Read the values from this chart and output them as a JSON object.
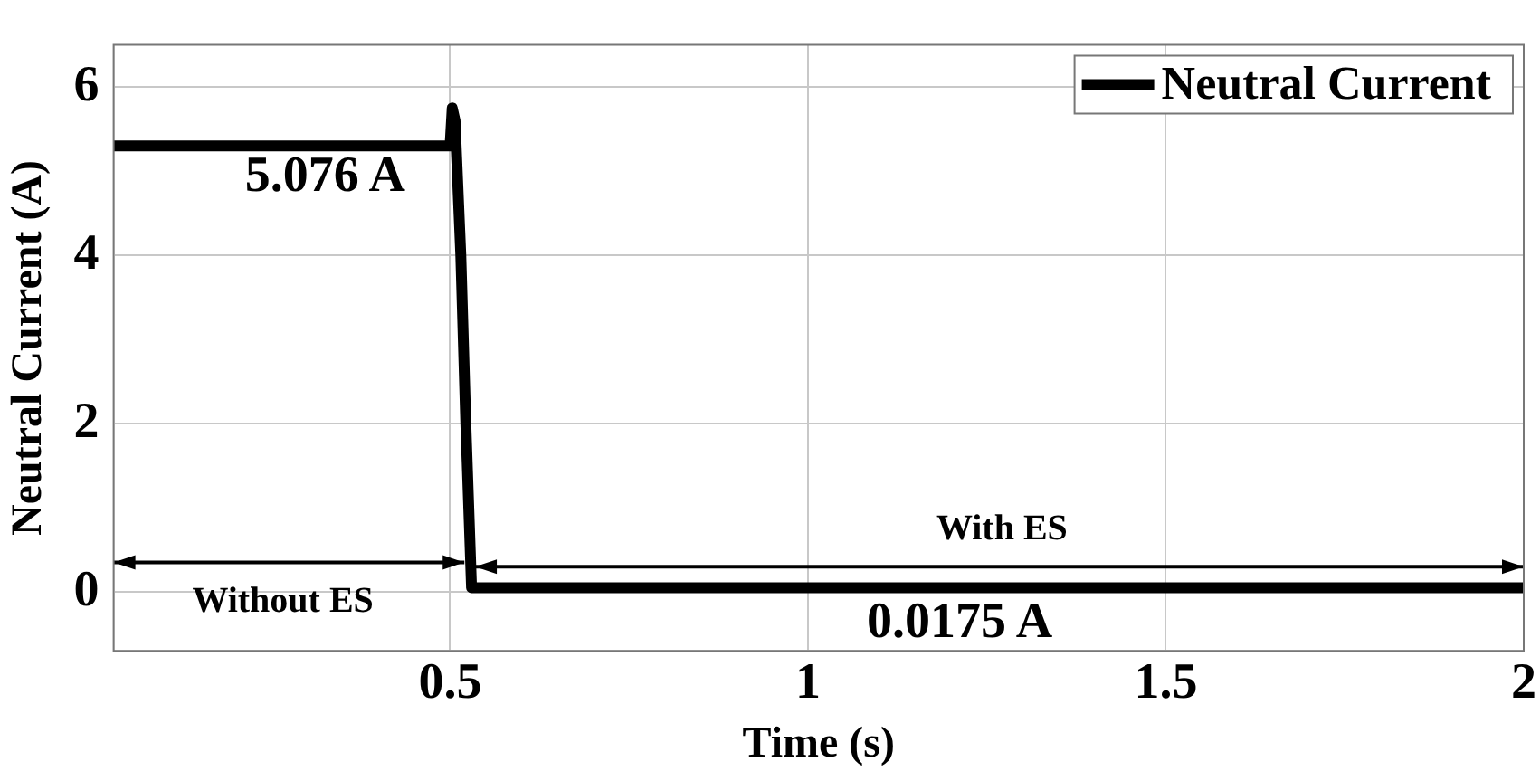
{
  "chart_data": {
    "type": "line",
    "xlabel": "Time (s)",
    "ylabel": "Neutral Current (A)",
    "x": [
      0.03,
      0.5,
      0.503,
      0.507,
      0.515,
      0.522,
      0.53,
      0.54,
      1,
      1.5,
      2
    ],
    "series": [
      {
        "name": "Neutral Current",
        "color": "#000000",
        "values": [
          5.3,
          5.3,
          5.75,
          5.6,
          4,
          2,
          0.05,
          0.05,
          0.05,
          0.05,
          0.05
        ]
      }
    ],
    "xlim": [
      0.03,
      2
    ],
    "ylim": [
      -0.7,
      6.5
    ],
    "xticks": [
      0.5,
      1,
      1.5,
      2
    ],
    "yticks": [
      0,
      2,
      4,
      6
    ],
    "grid": true,
    "legend": "top right",
    "marker": "none",
    "line_style": "solid",
    "annotations": [
      "5.076 A",
      "0.0175 A",
      "Without ES",
      "With ES"
    ]
  }
}
